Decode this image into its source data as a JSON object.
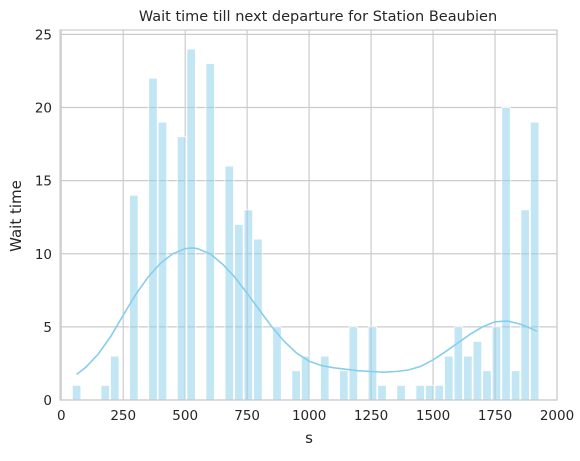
{
  "chart_data": {
    "type": "bar",
    "title": "Wait time till next departure for Station Beaubien",
    "xlabel": "s",
    "ylabel": "Wait time",
    "xlim": [
      -5,
      2000
    ],
    "ylim": [
      0,
      25.3
    ],
    "xticks": [
      0,
      250,
      500,
      750,
      1000,
      1250,
      1500,
      1750,
      2000
    ],
    "yticks": [
      0,
      5,
      10,
      15,
      20,
      25
    ],
    "grid": true,
    "bin_width": 38.5,
    "bin_start": 62,
    "counts": [
      1,
      0,
      0,
      1,
      3,
      0,
      14,
      0,
      22,
      19,
      0,
      18,
      24,
      0,
      23,
      0,
      16,
      12,
      13,
      11,
      0,
      5,
      0,
      2,
      3,
      0,
      3,
      0,
      2,
      5,
      0,
      5,
      1,
      0,
      1,
      0,
      1,
      1,
      1,
      3,
      5,
      3,
      4,
      2,
      5,
      20,
      2,
      13,
      19
    ],
    "kde": {
      "x": [
        62,
        100,
        150,
        200,
        250,
        300,
        350,
        400,
        450,
        500,
        530,
        550,
        600,
        650,
        700,
        750,
        800,
        850,
        900,
        950,
        1000,
        1050,
        1100,
        1150,
        1200,
        1250,
        1300,
        1350,
        1400,
        1450,
        1500,
        1550,
        1600,
        1650,
        1700,
        1750,
        1800,
        1850,
        1880,
        1920
      ],
      "y": [
        1.75,
        2.25,
        3.15,
        4.35,
        5.8,
        7.2,
        8.4,
        9.35,
        10.0,
        10.35,
        10.4,
        10.35,
        10.0,
        9.3,
        8.4,
        7.3,
        6.15,
        5.0,
        4.0,
        3.2,
        2.65,
        2.35,
        2.2,
        2.1,
        2.0,
        1.95,
        1.9,
        1.95,
        2.05,
        2.3,
        2.75,
        3.3,
        3.9,
        4.5,
        5.0,
        5.35,
        5.4,
        5.2,
        5.0,
        4.7
      ]
    },
    "bar_color": "#87ceeb",
    "line_color": "#87ceeb"
  }
}
